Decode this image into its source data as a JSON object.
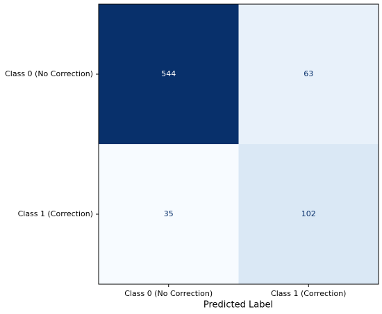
{
  "chart_data": {
    "type": "heatmap",
    "x_label": "Predicted Label",
    "x_categories": [
      "Class 0 (No Correction)",
      "Class 1 (Correction)"
    ],
    "y_categories": [
      "Class 0 (No Correction)",
      "Class 1 (Correction)"
    ],
    "values": [
      [
        544,
        63
      ],
      [
        35,
        102
      ]
    ],
    "colors": [
      [
        "#08306b",
        "#e8f1fa"
      ],
      [
        "#f7fbff",
        "#dae8f5"
      ]
    ]
  }
}
